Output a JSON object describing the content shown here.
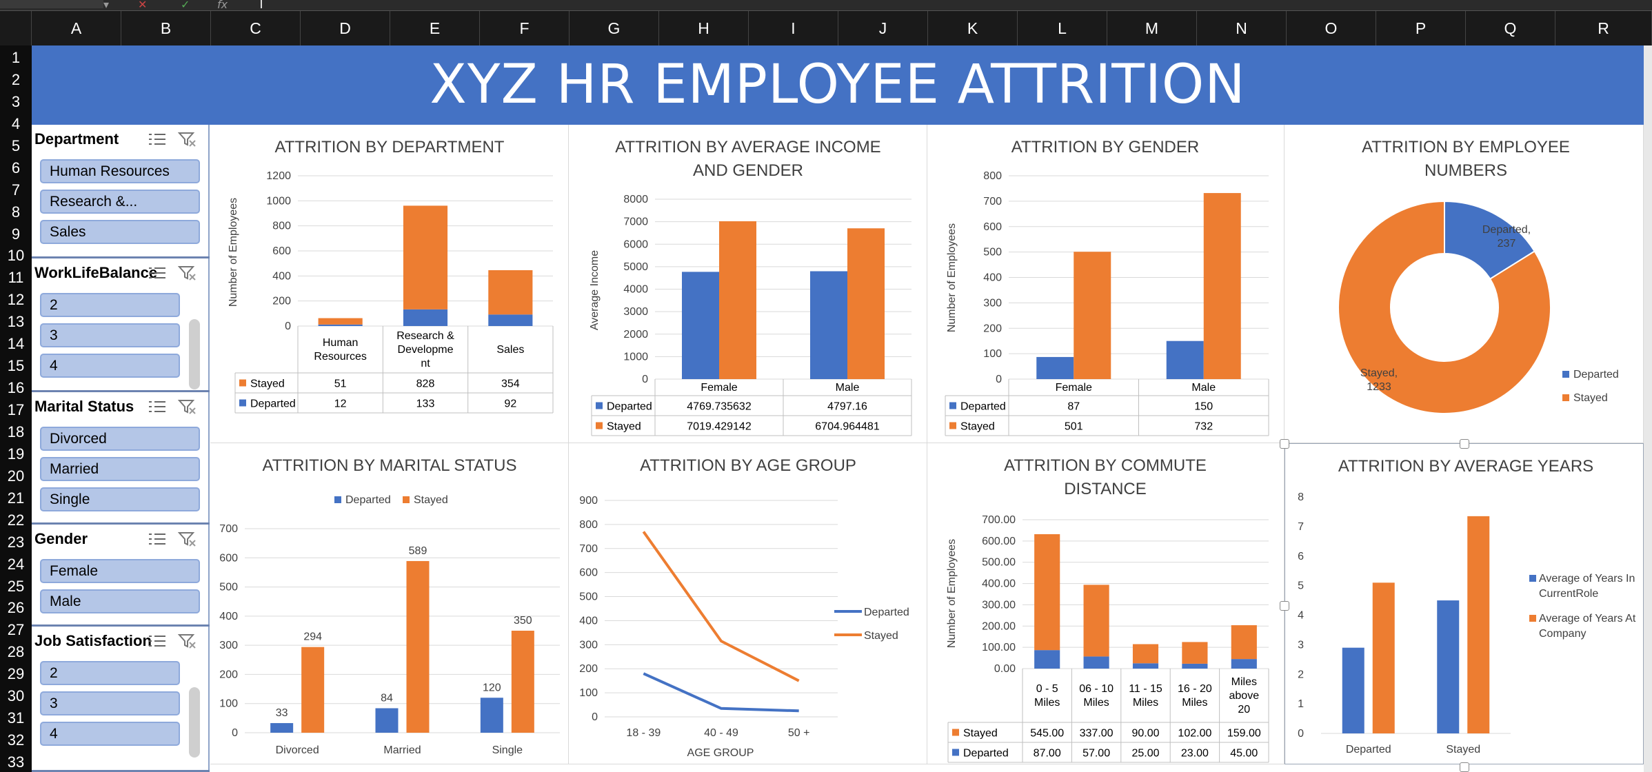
{
  "window": {
    "formula_icons": [
      "cancel-x-icon",
      "enter-check-icon",
      "fx-icon"
    ],
    "columns": [
      "A",
      "B",
      "C",
      "D",
      "E",
      "F",
      "G",
      "H",
      "I",
      "J",
      "K",
      "L",
      "M",
      "N",
      "O",
      "P",
      "Q",
      "R"
    ],
    "rows": [
      "1",
      "2",
      "3",
      "4",
      "5",
      "6",
      "7",
      "8",
      "9",
      "10",
      "11",
      "12",
      "13",
      "14",
      "15",
      "16",
      "17",
      "18",
      "19",
      "20",
      "21",
      "22",
      "23",
      "24",
      "25",
      "26",
      "27",
      "28",
      "29",
      "30",
      "31",
      "32",
      "33"
    ]
  },
  "banner": {
    "title": "XYZ HR EMPLOYEE ATTRITION"
  },
  "slicers": [
    {
      "title": "Department",
      "items": [
        "Human Resources",
        "Research &...",
        "Sales"
      ],
      "scroll": false
    },
    {
      "title": "WorkLifeBalance",
      "items": [
        "2",
        "3",
        "4"
      ],
      "scroll": true
    },
    {
      "title": "Marital Status",
      "items": [
        "Divorced",
        "Married",
        "Single"
      ],
      "scroll": false
    },
    {
      "title": "Gender",
      "items": [
        "Female",
        "Male"
      ],
      "scroll": false
    },
    {
      "title": "Job Satisfaction",
      "items": [
        "2",
        "3",
        "4"
      ],
      "scroll": true
    }
  ],
  "colors": {
    "departed": "#4472c4",
    "stayed": "#ed7d31",
    "banner": "#4472c4",
    "slicer_item": "#b4c6e7",
    "line_departed": "#4472c4",
    "line_stayed": "#ed7d31"
  },
  "chart_data": [
    {
      "id": "department",
      "type": "bar",
      "stacked": true,
      "title": "ATTRITION BY DEPARTMENT",
      "ylabel": "Number of Employees",
      "ylim": [
        0,
        1200
      ],
      "yticks": [
        "0",
        "200",
        "400",
        "600",
        "800",
        "1000",
        "1200"
      ],
      "categories": [
        "Human Resources",
        "Research & Development",
        "Sales"
      ],
      "category_labels": [
        [
          "Human",
          "Resources"
        ],
        [
          "Research &",
          "Developme",
          "nt"
        ],
        [
          "Sales"
        ]
      ],
      "series": [
        {
          "name": "Stayed",
          "values": [
            51,
            828,
            354
          ],
          "display": [
            "51",
            "828",
            "354"
          ]
        },
        {
          "name": "Departed",
          "values": [
            12,
            133,
            92
          ],
          "display": [
            "12",
            "133",
            "92"
          ]
        }
      ],
      "data_table": true
    },
    {
      "id": "income",
      "type": "bar",
      "title": [
        "ATTRITION BY AVERAGE INCOME",
        "AND GENDER"
      ],
      "ylabel": "Average Income",
      "ylim": [
        0,
        8000
      ],
      "yticks": [
        "0",
        "1000",
        "2000",
        "3000",
        "4000",
        "5000",
        "6000",
        "7000",
        "8000"
      ],
      "categories": [
        "Female",
        "Male"
      ],
      "series": [
        {
          "name": "Departed",
          "values": [
            4769.735632,
            4797.16
          ],
          "display": [
            "4769.735632",
            "4797.16"
          ]
        },
        {
          "name": "Stayed",
          "values": [
            7019.429142,
            6704.964481
          ],
          "display": [
            "7019.429142",
            "6704.964481"
          ]
        }
      ],
      "data_table": true
    },
    {
      "id": "gender",
      "type": "bar",
      "title": "ATTRITION BY GENDER",
      "ylabel": "Number of Employees",
      "ylim": [
        0,
        800
      ],
      "yticks": [
        "0",
        "100",
        "200",
        "300",
        "400",
        "500",
        "600",
        "700",
        "800"
      ],
      "categories": [
        "Female",
        "Male"
      ],
      "series": [
        {
          "name": "Departed",
          "values": [
            87,
            150
          ],
          "display": [
            "87",
            "150"
          ]
        },
        {
          "name": "Stayed",
          "values": [
            501,
            732
          ],
          "display": [
            "501",
            "732"
          ]
        }
      ],
      "data_table": true
    },
    {
      "id": "numbers",
      "type": "pie",
      "donut": true,
      "title": [
        "ATTRITION BY EMPLOYEE",
        "NUMBERS"
      ],
      "slices": [
        {
          "name": "Departed",
          "value": 237,
          "label": [
            "Departed,",
            "237"
          ]
        },
        {
          "name": "Stayed",
          "value": 1233,
          "label": [
            "Stayed,",
            "1233"
          ]
        }
      ],
      "legend": [
        "Departed",
        "Stayed"
      ],
      "legend_position": "right"
    },
    {
      "id": "marital",
      "type": "bar",
      "title": "ATTRITION BY MARITAL STATUS",
      "ylim": [
        0,
        700
      ],
      "yticks": [
        "0",
        "100",
        "200",
        "300",
        "400",
        "500",
        "600",
        "700"
      ],
      "categories": [
        "Divorced",
        "Married",
        "Single"
      ],
      "series": [
        {
          "name": "Departed",
          "values": [
            33,
            84,
            120
          ],
          "display": [
            "33",
            "84",
            "120"
          ]
        },
        {
          "name": "Stayed",
          "values": [
            294,
            589,
            350
          ],
          "display": [
            "294",
            "589",
            "350"
          ]
        }
      ],
      "legend": [
        "Departed",
        "Stayed"
      ],
      "legend_position": "top"
    },
    {
      "id": "age",
      "type": "line",
      "title": "ATTRITION BY AGE GROUP",
      "xlabel": "AGE GROUP",
      "ylim": [
        0,
        900
      ],
      "yticks": [
        "0",
        "100",
        "200",
        "300",
        "400",
        "500",
        "600",
        "700",
        "800",
        "900"
      ],
      "categories": [
        "18 - 39",
        "40 - 49",
        "50 +"
      ],
      "series": [
        {
          "name": "Departed",
          "values": [
            180,
            35,
            25
          ]
        },
        {
          "name": "Stayed",
          "values": [
            770,
            315,
            150
          ]
        }
      ],
      "legend": [
        "Departed",
        "Stayed"
      ],
      "legend_position": "right"
    },
    {
      "id": "commute",
      "type": "bar",
      "stacked": true,
      "title": [
        "ATTRITION BY COMMUTE",
        "DISTANCE"
      ],
      "ylabel": "Number of Employees",
      "ylim": [
        0,
        700
      ],
      "yticks": [
        "0.00",
        "100.00",
        "200.00",
        "300.00",
        "400.00",
        "500.00",
        "600.00",
        "700.00"
      ],
      "categories": [
        "0 - 5 Miles",
        "06 - 10 Miles",
        "11 - 15 Miles",
        "16 - 20 Miles",
        "Miles above 20"
      ],
      "category_labels": [
        [
          "0 - 5",
          "Miles"
        ],
        [
          "06 - 10",
          "Miles"
        ],
        [
          "11 - 15",
          "Miles"
        ],
        [
          "16 - 20",
          "Miles"
        ],
        [
          "Miles",
          "above",
          "20"
        ]
      ],
      "series": [
        {
          "name": "Stayed",
          "values": [
            545,
            337,
            90,
            102,
            159
          ],
          "display": [
            "545.00",
            "337.00",
            "90.00",
            "102.00",
            "159.00"
          ]
        },
        {
          "name": "Departed",
          "values": [
            87,
            57,
            25,
            23,
            45
          ],
          "display": [
            "87.00",
            "57.00",
            "25.00",
            "23.00",
            "45.00"
          ]
        }
      ],
      "data_table": true
    },
    {
      "id": "years",
      "type": "bar",
      "title": "ATTRITION BY AVERAGE YEARS",
      "ylim": [
        0,
        8
      ],
      "yticks": [
        "0",
        "1",
        "2",
        "3",
        "4",
        "5",
        "6",
        "7",
        "8"
      ],
      "categories": [
        "Departed",
        "Stayed"
      ],
      "series": [
        {
          "name": "Average of Years In CurrentRole",
          "values": [
            2.9,
            4.5
          ]
        },
        {
          "name": "Average of Years At Company",
          "values": [
            5.1,
            7.35
          ]
        }
      ],
      "legend": [
        [
          "Average of Years In",
          "CurrentRole"
        ],
        [
          "Average of Years At",
          "Company"
        ]
      ],
      "legend_position": "right"
    }
  ]
}
